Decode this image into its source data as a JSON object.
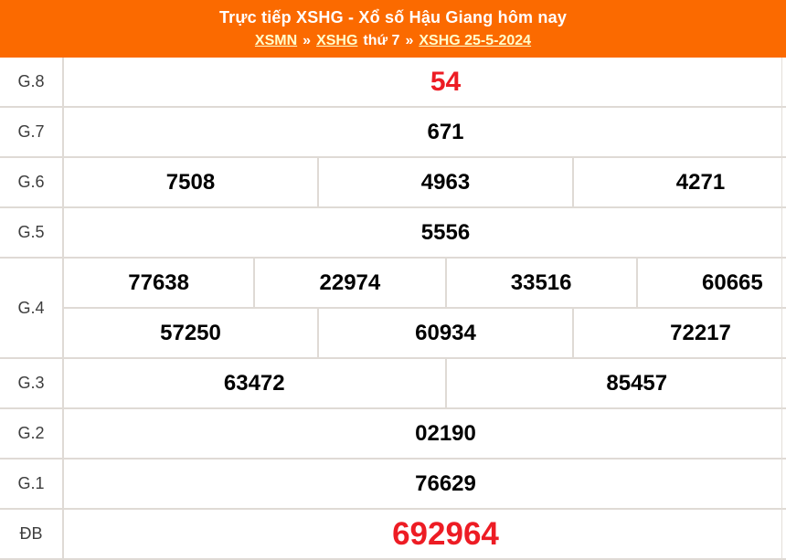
{
  "header": {
    "title": "Trực tiếp XSHG - Xổ số Hậu Giang hôm nay",
    "breadcrumb": [
      {
        "label": "XSMN",
        "link": true
      },
      {
        "label": "»",
        "link": false
      },
      {
        "label": "XSHG",
        "link": true
      },
      {
        "label": "thứ 7",
        "link": false
      },
      {
        "label": "»",
        "link": false
      },
      {
        "label": "XSHG 25-5-2024",
        "link": true
      }
    ]
  },
  "results": {
    "rows": [
      {
        "prize": "G.8",
        "style": "hl-large",
        "groups": [
          [
            "54"
          ]
        ]
      },
      {
        "prize": "G.7",
        "style": "normal",
        "groups": [
          [
            "671"
          ]
        ]
      },
      {
        "prize": "G.6",
        "style": "normal",
        "groups": [
          [
            "7508",
            "4963",
            "4271"
          ]
        ]
      },
      {
        "prize": "G.5",
        "style": "normal",
        "groups": [
          [
            "5556"
          ]
        ]
      },
      {
        "prize": "G.4",
        "style": "normal",
        "groups": [
          [
            "77638",
            "22974",
            "33516",
            "60665"
          ],
          [
            "57250",
            "60934",
            "72217"
          ]
        ]
      },
      {
        "prize": "G.3",
        "style": "normal",
        "groups": [
          [
            "63472",
            "85457"
          ]
        ]
      },
      {
        "prize": "G.2",
        "style": "normal",
        "groups": [
          [
            "02190"
          ]
        ]
      },
      {
        "prize": "G.1",
        "style": "normal",
        "groups": [
          [
            "76629"
          ]
        ]
      },
      {
        "prize": "ĐB",
        "style": "hl-xlarge",
        "groups": [
          [
            "692964"
          ]
        ]
      }
    ]
  },
  "colors": {
    "header_bg": "#fb6a00",
    "header_text": "#ffffff",
    "link": "#ffffcc",
    "highlight": "#ed1c24",
    "number": "#000000",
    "border": "#dfdad5"
  }
}
